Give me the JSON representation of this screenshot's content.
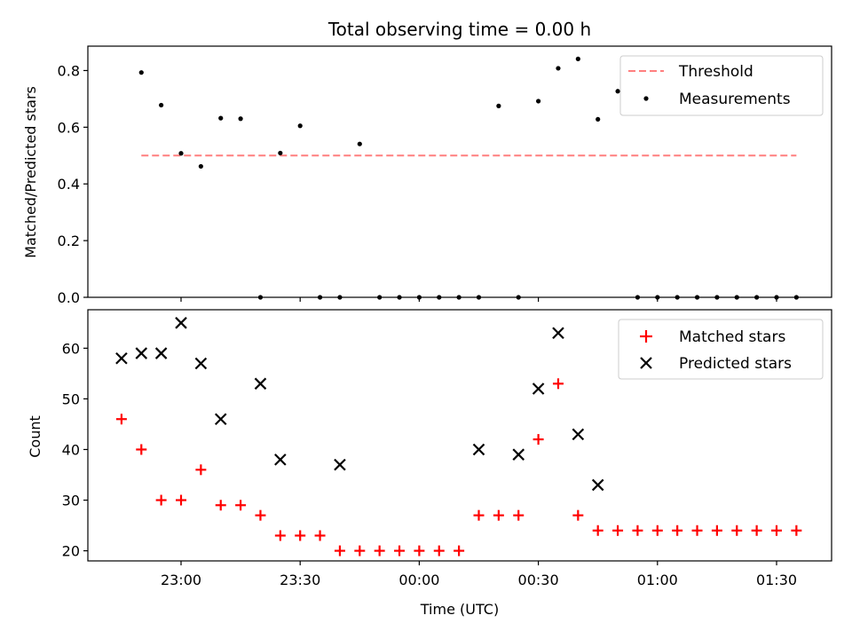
{
  "chart_data": [
    {
      "type": "scatter",
      "title": "Total observing time = 0.00 h",
      "ylabel": "Matched/Predicted stars",
      "xlabel": "",
      "ylim": [
        0,
        0.886
      ],
      "yticks": [
        "0.0",
        "0.2",
        "0.4",
        "0.6",
        "0.8"
      ],
      "ytick_values": [
        0.0,
        0.2,
        0.4,
        0.6,
        0.8
      ],
      "xtick_labels_shown": false,
      "legend_placement": "top-right",
      "threshold": {
        "name": "Threshold",
        "value": 0.5,
        "x_start": "22:50",
        "x_end": "01:35",
        "color": "#ff7f7f",
        "style": "dashed"
      },
      "series": [
        {
          "name": "Measurements",
          "color": "#000000",
          "x": [
            "22:50",
            "22:55",
            "23:00",
            "23:05",
            "23:10",
            "23:15",
            "23:20",
            "23:25",
            "23:30",
            "23:35",
            "23:40",
            "23:45",
            "23:50",
            "23:55",
            "00:00",
            "00:05",
            "00:10",
            "00:15",
            "00:20",
            "00:25",
            "00:30",
            "00:35",
            "00:40",
            "00:45",
            "00:50",
            "00:55",
            "01:00",
            "01:05",
            "01:10",
            "01:15",
            "01:20",
            "01:25",
            "01:30",
            "01:35"
          ],
          "y": [
            0.793,
            0.678,
            0.508,
            0.462,
            0.632,
            0.63,
            0.0,
            0.509,
            0.605,
            0.0,
            0.0,
            0.541,
            0.0,
            0.0,
            0.0,
            0.0,
            0.0,
            0.0,
            0.675,
            0.0,
            0.692,
            0.808,
            0.841,
            0.628,
            0.727,
            0.0,
            0.0,
            0.0,
            0.0,
            0.0,
            0.0,
            0.0,
            0.0,
            0.0
          ]
        }
      ]
    },
    {
      "type": "scatter",
      "title": "",
      "ylabel": "Count",
      "xlabel": "Time (UTC)",
      "ylim": [
        18.0,
        67.6
      ],
      "yticks": [
        "20",
        "30",
        "40",
        "50",
        "60"
      ],
      "ytick_values": [
        20,
        30,
        40,
        50,
        60
      ],
      "xticks": [
        "23:00",
        "23:30",
        "00:00",
        "00:30",
        "01:00",
        "01:30"
      ],
      "legend_placement": "top-right",
      "series": [
        {
          "name": "Matched stars",
          "marker": "plus",
          "color": "#ff0000",
          "x": [
            "22:45",
            "22:50",
            "22:55",
            "23:00",
            "23:05",
            "23:10",
            "23:15",
            "23:20",
            "23:25",
            "23:30",
            "23:35",
            "23:40",
            "23:45",
            "23:50",
            "23:55",
            "00:00",
            "00:05",
            "00:10",
            "00:15",
            "00:20",
            "00:25",
            "00:30",
            "00:35",
            "00:40",
            "00:45",
            "00:50",
            "00:55",
            "01:00",
            "01:05",
            "01:10",
            "01:15",
            "01:20",
            "01:25",
            "01:30",
            "01:35"
          ],
          "y": [
            46,
            40,
            30,
            30,
            36,
            29,
            29,
            27,
            23,
            23,
            23,
            20,
            20,
            20,
            20,
            20,
            20,
            20,
            27,
            27,
            27,
            42,
            53,
            27,
            24,
            24,
            24,
            24,
            24,
            24,
            24,
            24,
            24,
            24,
            24
          ]
        },
        {
          "name": "Predicted stars",
          "marker": "x",
          "color": "#000000",
          "x": [
            "22:45",
            "22:50",
            "22:55",
            "23:00",
            "23:05",
            "23:10",
            "23:20",
            "23:25",
            "23:40",
            "00:15",
            "00:25",
            "00:30",
            "00:35",
            "00:40",
            "00:45"
          ],
          "y": [
            58,
            59,
            59,
            65,
            57,
            46,
            53,
            38,
            37,
            40,
            39,
            52,
            63,
            43,
            33
          ]
        }
      ]
    }
  ]
}
